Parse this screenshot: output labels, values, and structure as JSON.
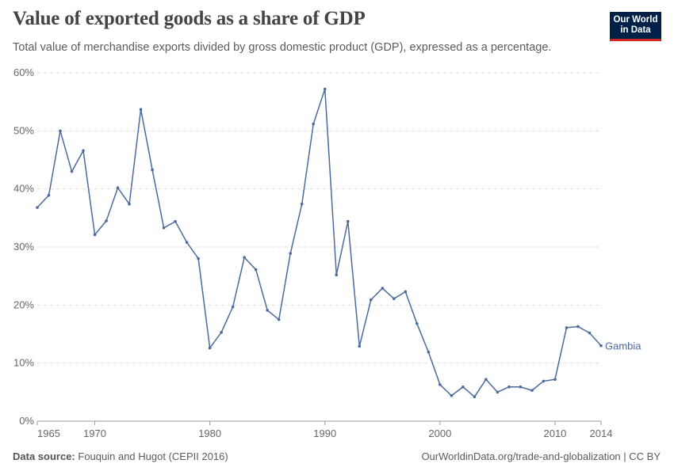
{
  "header": {
    "title": "Value of exported goods as a share of GDP",
    "subtitle": "Total value of merchandise exports divided by gross domestic product (GDP), expressed as a percentage.",
    "logo_line1": "Our World",
    "logo_line2": "in Data"
  },
  "footer": {
    "source_label": "Data source:",
    "source": "Fouquin and Hugot (CEPII 2016)",
    "url_license": "OurWorldinData.org/trade-and-globalization | CC BY"
  },
  "chart_data": {
    "type": "line",
    "title": "Value of exported goods as a share of GDP",
    "xlabel": "",
    "ylabel": "",
    "xlim": [
      1965,
      2014
    ],
    "ylim": [
      0,
      60
    ],
    "grid": "horizontal dashed",
    "x_ticks": [
      "1965",
      "1970",
      "1980",
      "1990",
      "2000",
      "2010",
      "2014"
    ],
    "y_ticks": [
      "0%",
      "10%",
      "20%",
      "30%",
      "40%",
      "50%",
      "60%"
    ],
    "line_color": "#4c6a9c",
    "series": [
      {
        "name": "Gambia",
        "x": [
          1965,
          1966,
          1967,
          1968,
          1969,
          1970,
          1971,
          1972,
          1973,
          1974,
          1975,
          1976,
          1977,
          1978,
          1979,
          1980,
          1981,
          1982,
          1983,
          1984,
          1985,
          1986,
          1987,
          1988,
          1989,
          1990,
          1991,
          1992,
          1993,
          1994,
          1995,
          1996,
          1997,
          1998,
          1999,
          2000,
          2001,
          2002,
          2003,
          2004,
          2005,
          2006,
          2007,
          2008,
          2009,
          2010,
          2011,
          2012,
          2013,
          2014
        ],
        "values": [
          36.8,
          38.9,
          50.0,
          43.0,
          46.6,
          32.1,
          34.5,
          40.2,
          37.4,
          53.7,
          43.3,
          33.3,
          34.4,
          30.8,
          28.0,
          12.6,
          15.3,
          19.7,
          28.2,
          26.1,
          19.1,
          17.5,
          28.9,
          37.4,
          51.2,
          57.2,
          25.2,
          34.4,
          12.9,
          20.9,
          22.9,
          21.1,
          22.3,
          16.8,
          11.9,
          6.3,
          4.4,
          5.9,
          4.2,
          7.2,
          5.0,
          5.9,
          5.9,
          5.3,
          6.9,
          7.2,
          16.1,
          16.3,
          15.2,
          13.0
        ]
      }
    ]
  }
}
